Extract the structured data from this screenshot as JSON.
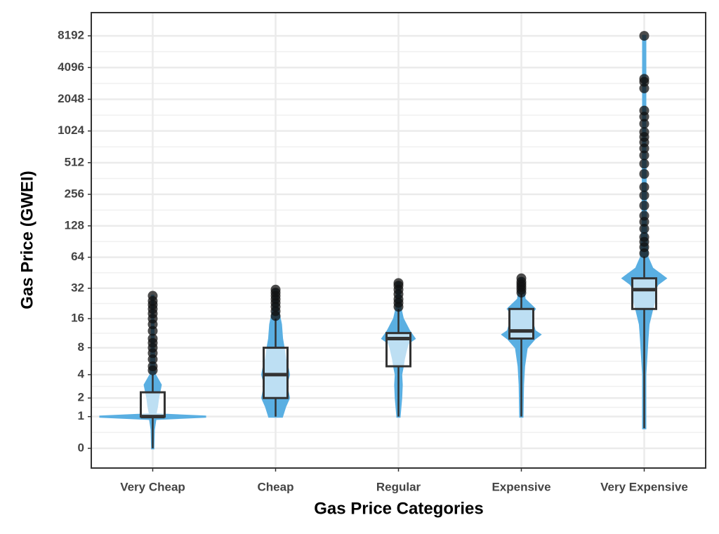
{
  "chart_data": {
    "type": "violin-box",
    "x_label": "Gas Price Categories",
    "y_label": "Gas Price (GWEI)",
    "yscale": "log2(1+x)",
    "ylim": [
      -0.35,
      13600
    ],
    "yticks": [
      0,
      1,
      2,
      4,
      8,
      16,
      32,
      64,
      128,
      256,
      512,
      1024,
      2048,
      4096,
      8192
    ],
    "grid": true,
    "violin_color": "#5aafe2",
    "box_color": "#333333",
    "outlier_color": "#111111",
    "categories": [
      "Very Cheap",
      "Cheap",
      "Regular",
      "Expensive",
      "Very Expensive"
    ],
    "boxes": [
      {
        "min": 0,
        "q1": 1,
        "median": 1,
        "q3": 2.4,
        "max": 4,
        "outliers": [
          4.5,
          5,
          6,
          7,
          8,
          9,
          10,
          12,
          14,
          16,
          18,
          20,
          22,
          24,
          27
        ],
        "violin_values": [
          0,
          0.5,
          0.9,
          1,
          1.1,
          1.5,
          2,
          3,
          4,
          8,
          16,
          27
        ],
        "violin_density": [
          0.01,
          0.02,
          0.05,
          1,
          0.05,
          0.08,
          0.1,
          0.15,
          0.04,
          0.02,
          0.01,
          0.01
        ]
      },
      {
        "min": 1,
        "q1": 2,
        "median": 4,
        "q3": 8,
        "max": 16,
        "outliers": [
          17,
          19,
          21,
          23,
          25,
          27,
          29,
          31
        ],
        "violin_values": [
          1,
          1.5,
          2,
          3,
          4,
          5,
          6,
          8,
          10,
          14,
          20,
          31
        ],
        "violin_density": [
          0.12,
          0.18,
          0.25,
          0.2,
          0.25,
          0.22,
          0.18,
          0.15,
          0.12,
          0.1,
          0.04,
          0.02
        ]
      },
      {
        "min": 1,
        "q1": 5,
        "median": 10,
        "q3": 11.4,
        "max": 20,
        "outliers": [
          21,
          23,
          25,
          28,
          31,
          34,
          36
        ],
        "violin_values": [
          1,
          2,
          3,
          4,
          5,
          6,
          8,
          9,
          10,
          12,
          16,
          20,
          36
        ],
        "violin_density": [
          0.02,
          0.05,
          0.06,
          0.05,
          0.08,
          0.1,
          0.15,
          0.18,
          0.3,
          0.2,
          0.08,
          0.04,
          0.02
        ]
      },
      {
        "min": 1,
        "q1": 10,
        "median": 12,
        "q3": 20,
        "max": 28,
        "outliers": [
          29,
          31,
          33,
          35,
          37,
          40
        ],
        "violin_values": [
          1,
          3,
          5,
          8,
          10,
          11,
          12,
          15,
          18,
          20,
          25,
          40
        ],
        "violin_density": [
          0.02,
          0.03,
          0.05,
          0.1,
          0.25,
          0.35,
          0.25,
          0.2,
          0.18,
          0.25,
          0.06,
          0.02
        ]
      },
      {
        "min": 0.55,
        "q1": 20,
        "median": 31,
        "q3": 40,
        "max": 65,
        "outliers": [
          70,
          80,
          90,
          100,
          120,
          140,
          160,
          200,
          250,
          300,
          400,
          500,
          600,
          700,
          800,
          900,
          1000,
          1200,
          1400,
          1600,
          2600,
          3000,
          3200,
          8192
        ],
        "violin_values": [
          0.55,
          4,
          10,
          14,
          20,
          25,
          30,
          35,
          40,
          50,
          64,
          128,
          1024,
          8192
        ],
        "violin_density": [
          0.02,
          0.02,
          0.06,
          0.08,
          0.15,
          0.2,
          0.18,
          0.25,
          0.4,
          0.15,
          0.06,
          0.03,
          0.02,
          0.02
        ]
      }
    ]
  }
}
